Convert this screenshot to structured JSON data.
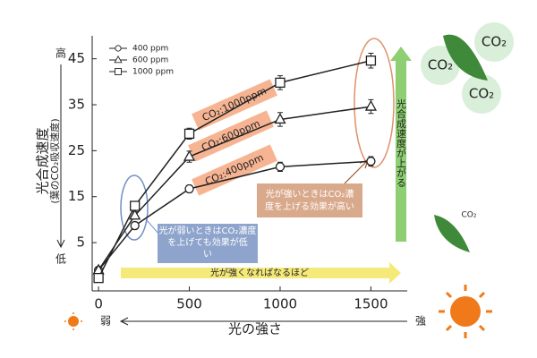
{
  "chart_data": {
    "type": "line",
    "y_label": "光合成速度",
    "y_sublabel": "(葉のCO₂吸収速度)",
    "y_high": "高",
    "y_low": "低",
    "x_label": "光の強さ",
    "x_low": "弱",
    "x_high": "強",
    "x": [
      0,
      200,
      500,
      1000,
      1500
    ],
    "series": [
      {
        "name": "400 ppm",
        "marker": "circle",
        "color": "#222",
        "values": [
          -1,
          8.7,
          16.7,
          21.5,
          22.7
        ],
        "errors": [
          0.5,
          0.8,
          0.8,
          1.0,
          1.0
        ]
      },
      {
        "name": "600 ppm",
        "marker": "triangle",
        "color": "#222",
        "values": [
          -1,
          10.9,
          23.7,
          31.8,
          34.6
        ],
        "errors": [
          0.5,
          0.8,
          1.2,
          1.5,
          1.5
        ]
      },
      {
        "name": "1000 ppm",
        "marker": "square",
        "color": "#222",
        "values": [
          -2.7,
          13,
          28.7,
          39.8,
          44.6
        ],
        "errors": [
          0.5,
          0.8,
          1.2,
          1.5,
          1.6
        ]
      }
    ],
    "xlim": [
      -35,
      1700
    ],
    "ylim": [
      -5.5,
      50
    ],
    "xticks": [
      0,
      500,
      1000,
      1500
    ],
    "yticks": [
      5,
      15,
      25,
      35,
      45
    ],
    "series_labels": [
      "CO₂:400ppm",
      "CO₂:600ppm",
      "CO₂:1000ppm"
    ],
    "low_light_note": [
      "光が弱いときはCO₂濃度",
      "を上げても効果が低",
      "い"
    ],
    "high_light_note": [
      "光が強いときはCO₂濃",
      "度を上げる効果が高い"
    ],
    "x_arrow_text": "光が強くなればなるほど",
    "y_arrow_text": "光合成速度が上がる",
    "leaf_labels": [
      "CO₂",
      "CO₂",
      "CO₂",
      "CO₂"
    ]
  }
}
